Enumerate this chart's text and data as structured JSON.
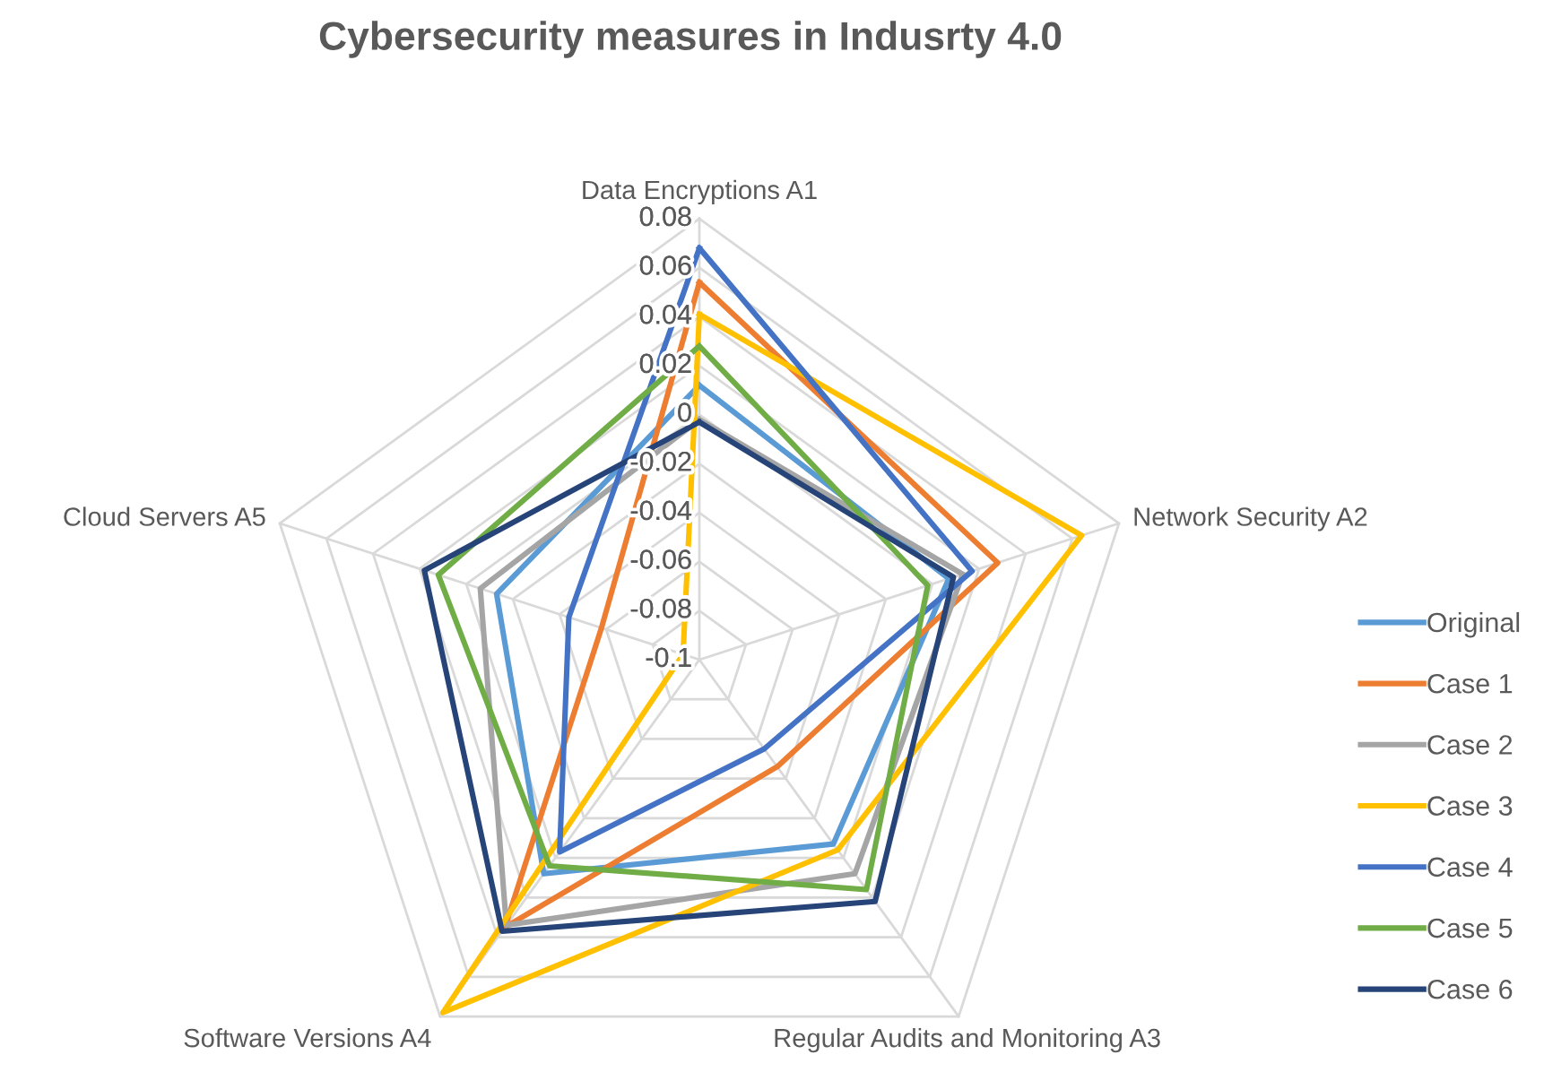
{
  "chart_data": {
    "type": "radar",
    "title": "Cybersecurity measures in Indusrty 4.0",
    "categories": [
      "Data Encryptions A1",
      "Network Security A2",
      "Regular Audits and Monitoring A3",
      "Software Versions A4",
      "Cloud Servers A5"
    ],
    "ylim": [
      -0.1,
      0.08
    ],
    "yticks": [
      -0.1,
      -0.08,
      -0.06,
      -0.04,
      -0.02,
      0,
      0.02,
      0.04,
      0.06,
      0.08
    ],
    "grid": true,
    "legend": "right",
    "marker": "none",
    "line_style": "solid",
    "series": [
      {
        "name": "Original",
        "color": "#5b9bd5",
        "values": [
          0.012,
          0.007,
          -0.007,
          0.008,
          -0.013
        ]
      },
      {
        "name": "Case 1",
        "color": "#ed7d31",
        "values": [
          0.054,
          0.028,
          -0.046,
          0.035,
          -0.058
        ]
      },
      {
        "name": "Case 2",
        "color": "#a5a5a5",
        "values": [
          -0.002,
          0.013,
          0.008,
          0.034,
          -0.006
        ]
      },
      {
        "name": "Case 3",
        "color": "#ffc000",
        "values": [
          0.041,
          0.064,
          -0.004,
          0.078,
          -0.093
        ]
      },
      {
        "name": "Case 4",
        "color": "#4472c4",
        "values": [
          0.068,
          0.017,
          -0.055,
          -0.003,
          -0.044
        ]
      },
      {
        "name": "Case 5",
        "color": "#70ad47",
        "values": [
          0.028,
          -0.002,
          0.016,
          0.004,
          0.012
        ]
      },
      {
        "name": "Case 6",
        "color": "#264478",
        "values": [
          -0.003,
          0.009,
          0.022,
          0.037,
          0.018
        ]
      }
    ]
  }
}
